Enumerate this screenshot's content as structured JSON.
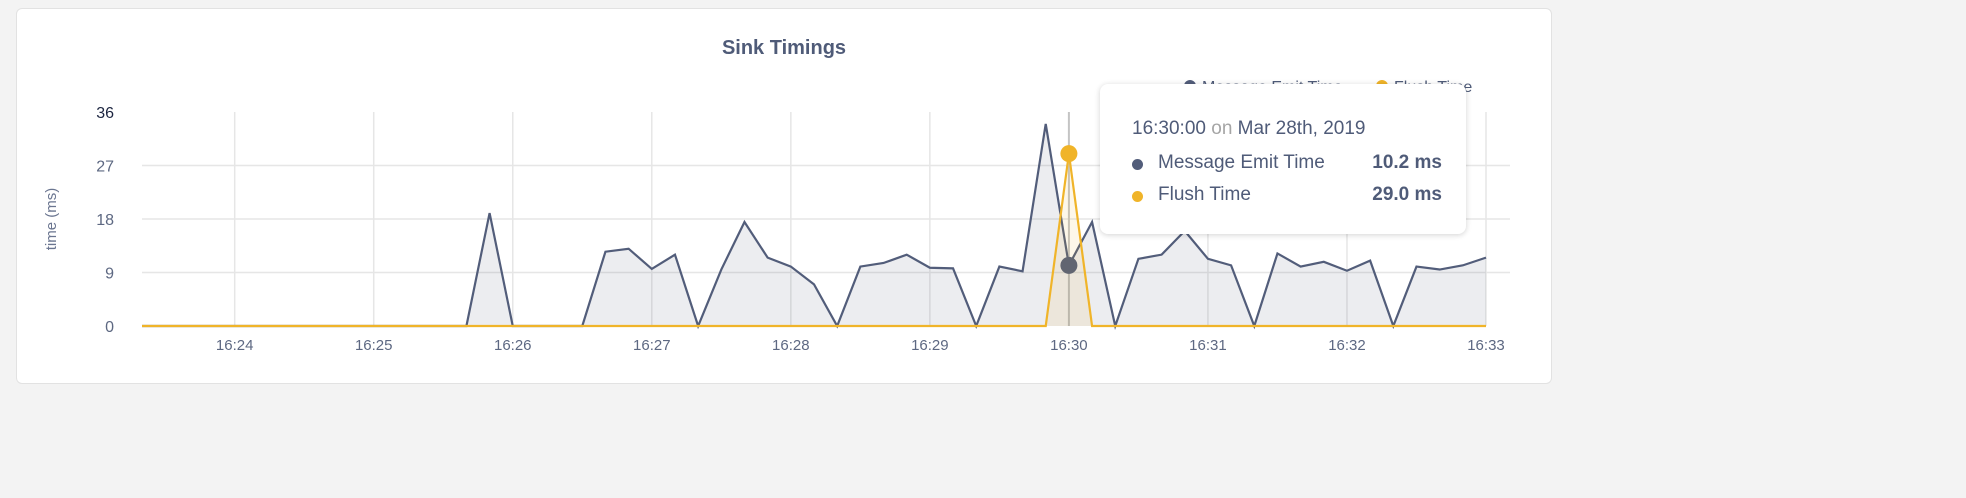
{
  "chart_data": {
    "type": "area",
    "title": "Sink Timings",
    "ylabel": "time (ms)",
    "xlabel": "",
    "ylim": [
      0,
      36
    ],
    "yticks": [
      "0",
      "9",
      "18",
      "27",
      "36"
    ],
    "x_start": "16:23:20",
    "x_end": "16:33:00",
    "x_step_seconds": 10,
    "xticks": [
      "16:24",
      "16:25",
      "16:26",
      "16:27",
      "16:28",
      "16:29",
      "16:30",
      "16:31",
      "16:32",
      "16:33"
    ],
    "grid": true,
    "legend": {
      "position": "top-right",
      "items": [
        "Message Emit Time",
        "Flush Time"
      ]
    },
    "series": [
      {
        "name": "Message Emit Time",
        "color": "#525d7a",
        "values": [
          0,
          0,
          0,
          0,
          0,
          0,
          0,
          0,
          0,
          0,
          0,
          0,
          0,
          0,
          0,
          19,
          0,
          0,
          0,
          0,
          12.5,
          13,
          9.6,
          12,
          0,
          9.5,
          17.5,
          11.5,
          10,
          7,
          0,
          10,
          10.6,
          12,
          9.8,
          9.7,
          0,
          10,
          9.2,
          34,
          10.2,
          17.5,
          0,
          11.3,
          12,
          16,
          11.3,
          10.2,
          0,
          12.2,
          10,
          10.8,
          9.3,
          11,
          0,
          10,
          9.5,
          10.2,
          11.5
        ]
      },
      {
        "name": "Flush Time",
        "color": "#f0b429",
        "values": [
          0,
          0,
          0,
          0,
          0,
          0,
          0,
          0,
          0,
          0,
          0,
          0,
          0,
          0,
          0,
          0,
          0,
          0,
          0,
          0,
          0,
          0,
          0,
          0,
          0,
          0,
          0,
          0,
          0,
          0,
          0,
          0,
          0,
          0,
          0,
          0,
          0,
          0,
          0,
          0,
          29.0,
          0,
          0,
          0,
          0,
          0,
          0,
          0,
          0,
          0,
          0,
          0,
          0,
          0,
          0,
          0,
          0,
          0,
          0
        ]
      }
    ],
    "hover_index": 40
  },
  "tooltip": {
    "time": "16:30:00",
    "on": "on",
    "date": "Mar 28th, 2019",
    "rows": [
      {
        "label": "Message Emit Time",
        "value": "10.2 ms",
        "color": "#525d7a"
      },
      {
        "label": "Flush Time",
        "value": "29.0 ms",
        "color": "#f0b429"
      }
    ]
  }
}
